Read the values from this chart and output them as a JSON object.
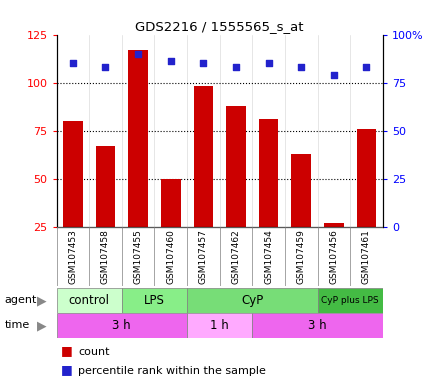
{
  "title": "GDS2216 / 1555565_s_at",
  "samples": [
    "GSM107453",
    "GSM107458",
    "GSM107455",
    "GSM107460",
    "GSM107457",
    "GSM107462",
    "GSM107454",
    "GSM107459",
    "GSM107456",
    "GSM107461"
  ],
  "counts": [
    80,
    67,
    117,
    50,
    98,
    88,
    81,
    63,
    27,
    76
  ],
  "percentile_ranks": [
    85,
    83,
    90,
    86,
    85,
    83,
    85,
    83,
    79,
    83
  ],
  "ylim_left": [
    25,
    125
  ],
  "ylim_right": [
    0,
    100
  ],
  "yticks_left": [
    25,
    50,
    75,
    100,
    125
  ],
  "yticks_right": [
    0,
    25,
    50,
    75,
    100
  ],
  "ytick_labels_right": [
    "0",
    "25",
    "50",
    "75",
    "100%"
  ],
  "bar_color": "#cc0000",
  "dot_color": "#2222cc",
  "grid_color": "black",
  "agent_groups": [
    {
      "label": "control",
      "start": 0,
      "end": 2,
      "color": "#ccffcc"
    },
    {
      "label": "LPS",
      "start": 2,
      "end": 4,
      "color": "#88ee88"
    },
    {
      "label": "CyP",
      "start": 4,
      "end": 8,
      "color": "#77dd77"
    },
    {
      "label": "CyP plus LPS",
      "start": 8,
      "end": 10,
      "color": "#44bb44"
    }
  ],
  "time_groups": [
    {
      "label": "3 h",
      "start": 0,
      "end": 4,
      "color": "#ee66ee"
    },
    {
      "label": "1 h",
      "start": 4,
      "end": 6,
      "color": "#ffaaff"
    },
    {
      "label": "3 h",
      "start": 6,
      "end": 10,
      "color": "#ee66ee"
    }
  ],
  "agent_label": "agent",
  "time_label": "time",
  "legend_count": "count",
  "legend_percentile": "percentile rank within the sample",
  "background_color": "#ffffff",
  "xtick_bg": "#d8d8d8"
}
